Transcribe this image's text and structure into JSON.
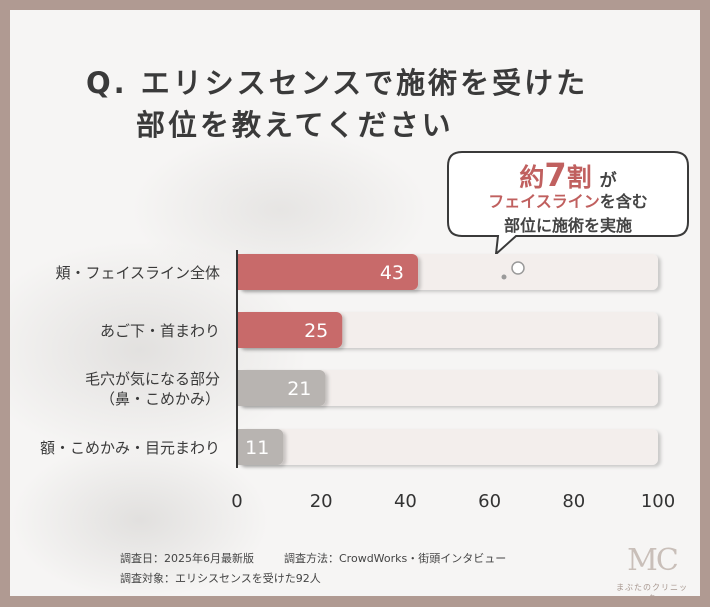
{
  "title": {
    "line1": "Q. エリシスセンスで施術を受けた",
    "line2": "部位を教えてください"
  },
  "callout": {
    "line1_prefix": "約",
    "line1_number": "7",
    "line1_suffix": "割",
    "line1_particle": "が",
    "line2_highlight": "フェイスライン",
    "line2_rest": "を含む",
    "line3": "部位に施術を実施"
  },
  "chart_data": {
    "type": "bar",
    "orientation": "horizontal",
    "categories": [
      [
        "頬・フェイスライン全体"
      ],
      [
        "あご下・首まわり"
      ],
      [
        "毛穴が気になる部分",
        "（鼻・こめかみ）"
      ],
      [
        "額・こめかみ・目元まわり"
      ]
    ],
    "values": [
      43,
      25,
      21,
      11
    ],
    "xlim": [
      0,
      100
    ],
    "xticks": [
      0,
      20,
      40,
      60,
      80,
      100
    ],
    "grid": false,
    "colors": {
      "highlight": "#c86a6a",
      "neutral": "#b8b4b1",
      "track": "#f3eeec",
      "label": "#3a3a3a"
    },
    "bar_colors": [
      "highlight",
      "highlight",
      "neutral",
      "neutral"
    ]
  },
  "source": {
    "date": "調査日：2025年6月最新版",
    "method": "調査方法：CrowdWorks・街頭インタビュー",
    "target": "調査対象：エリシスセンスを受けた92人"
  },
  "logo": {
    "mark": "MC",
    "text": "まぶたのクリニック"
  }
}
